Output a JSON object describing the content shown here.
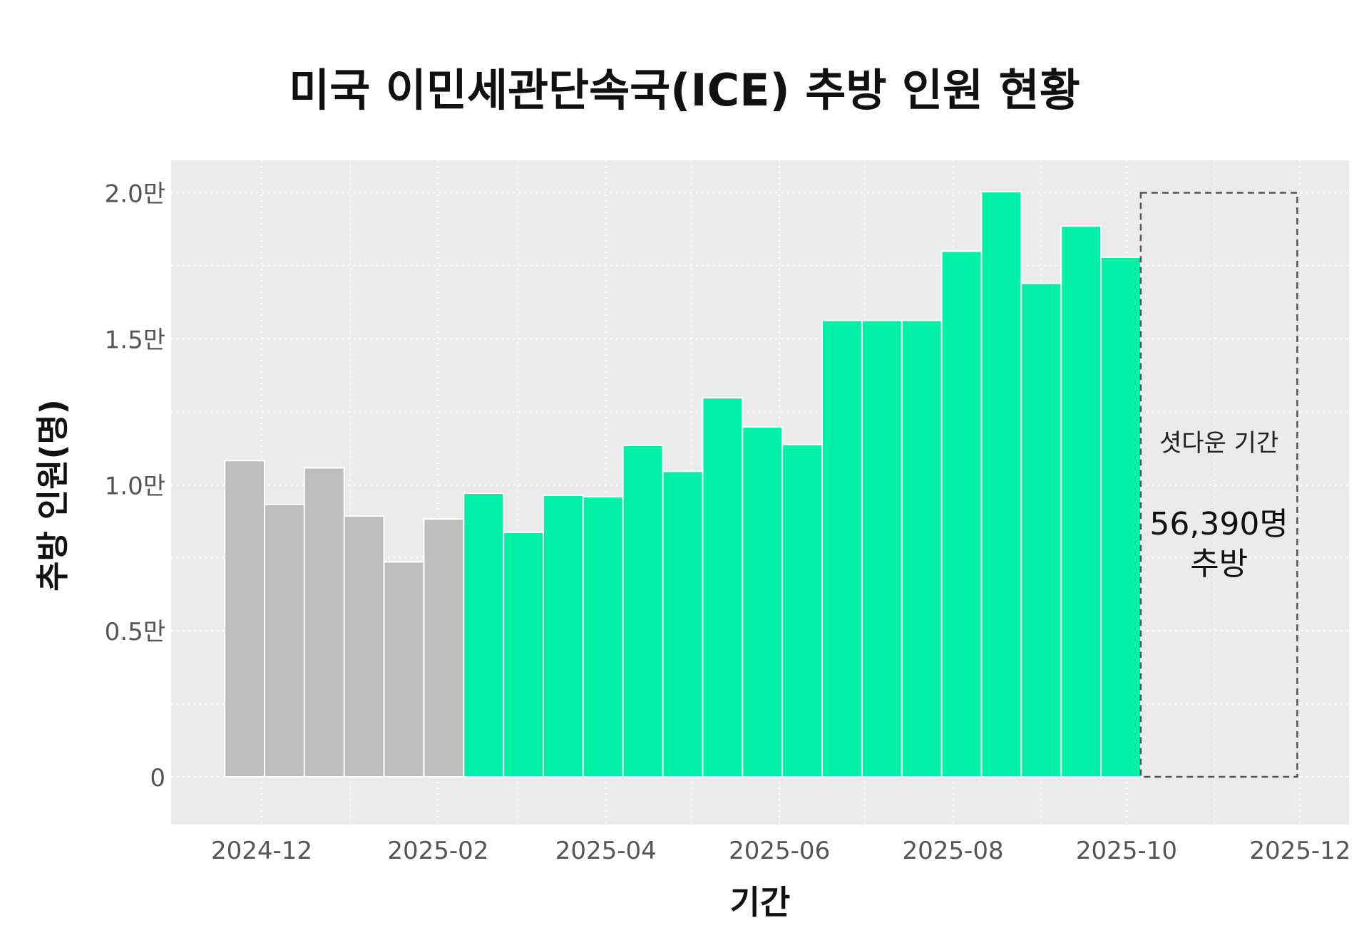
{
  "chart_data": {
    "type": "bar",
    "title": "미국 이민세관단속국(ICE) 추방 인원 현황",
    "xlabel": "기간",
    "ylabel": "추방 인원(명)",
    "ylim": [
      0,
      20000
    ],
    "y_ticks": [
      {
        "value": 0,
        "label": "0"
      },
      {
        "value": 5000,
        "label": "0.5만"
      },
      {
        "value": 10000,
        "label": "1.0만"
      },
      {
        "value": 15000,
        "label": "1.5만"
      },
      {
        "value": 20000,
        "label": "2.0만"
      }
    ],
    "x_ticks": [
      {
        "date": "2024-12-01",
        "label": "2024-12"
      },
      {
        "date": "2025-02-01",
        "label": "2025-02"
      },
      {
        "date": "2025-04-01",
        "label": "2025-04"
      },
      {
        "date": "2025-06-01",
        "label": "2025-06"
      },
      {
        "date": "2025-08-01",
        "label": "2025-08"
      },
      {
        "date": "2025-10-01",
        "label": "2025-10"
      },
      {
        "date": "2025-12-01",
        "label": "2025-12"
      }
    ],
    "xlim": [
      "2024-11-01",
      "2025-12-31"
    ],
    "bar_period_days": 14,
    "grid": true,
    "colors": {
      "before": "#bdbdbd",
      "after": "#00f0a5",
      "panel": "#ebebeb",
      "box": "#555555"
    },
    "series": [
      {
        "name": "before",
        "color": "#bdbdbd",
        "x": [
          "2024-11-18",
          "2024-12-02",
          "2024-12-16",
          "2024-12-30",
          "2025-01-13",
          "2025-01-27"
        ],
        "values": [
          10830,
          9330,
          10580,
          8930,
          7360,
          8830
        ]
      },
      {
        "name": "after",
        "color": "#00f0a5",
        "x": [
          "2025-02-10",
          "2025-02-24",
          "2025-03-10",
          "2025-03-24",
          "2025-04-07",
          "2025-04-21",
          "2025-05-05",
          "2025-05-19",
          "2025-06-02",
          "2025-06-16",
          "2025-06-30",
          "2025-07-14",
          "2025-07-28",
          "2025-08-11",
          "2025-08-25",
          "2025-09-08",
          "2025-09-22"
        ],
        "values": [
          9710,
          8370,
          9640,
          9590,
          11350,
          10460,
          12980,
          11980,
          11380,
          15630,
          15630,
          15630,
          18000,
          20040,
          16900,
          18860,
          17790
        ]
      }
    ],
    "annotation": {
      "start": "2025-10-06",
      "end": "2025-11-30",
      "top": 20000,
      "label": "셧다운 기간",
      "value_text": "56,390명",
      "suffix_text": "추방"
    }
  }
}
